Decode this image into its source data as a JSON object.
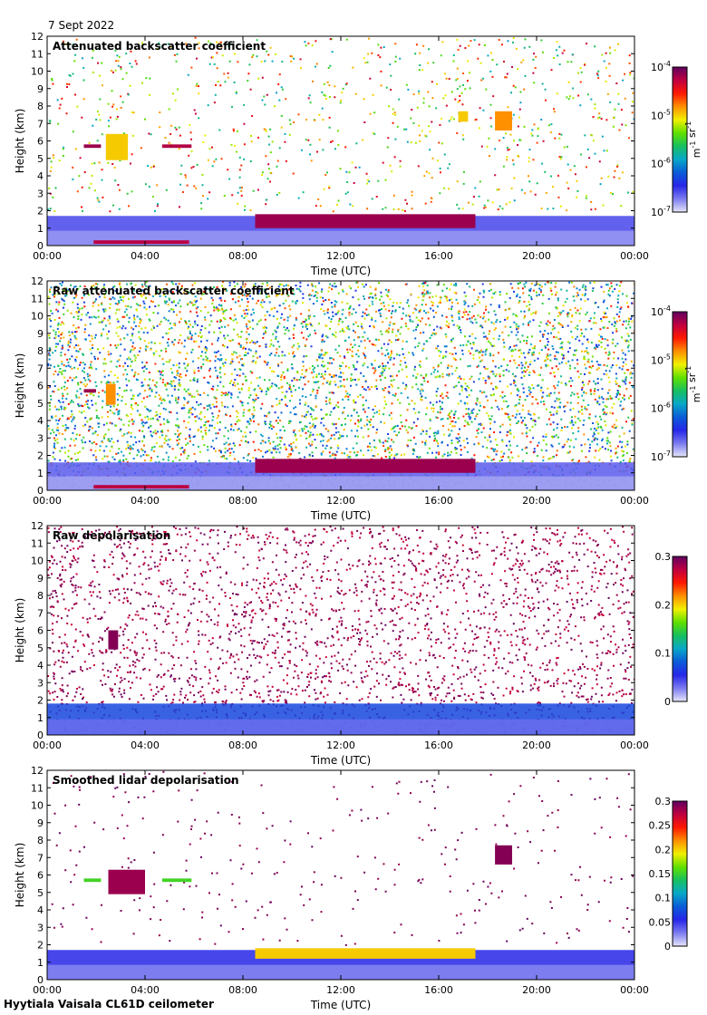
{
  "date": "7 Sept 2022",
  "footer": "Hyytiala Vaisala CL61D ceilometer",
  "colors": {
    "cmap": [
      "#ffffff",
      "#c8c8f4",
      "#7c7cf0",
      "#2626e8",
      "#0b5cd8",
      "#08a8c8",
      "#18c060",
      "#60e000",
      "#f0f000",
      "#ff9000",
      "#ff1800",
      "#c00040",
      "#600060"
    ],
    "low_signal": "#d8d8d8"
  },
  "chart_data": [
    {
      "type": "heatmap",
      "title": "Attenuated backscatter coefficient",
      "xlabel": "Time (UTC)",
      "ylabel": "Height (km)",
      "x_ticks": [
        "00:00",
        "04:00",
        "08:00",
        "12:00",
        "16:00",
        "20:00",
        "00:00"
      ],
      "xlim": [
        0,
        24
      ],
      "ylim": [
        0,
        12
      ],
      "y_ticks": [
        0,
        1,
        2,
        3,
        4,
        5,
        6,
        7,
        8,
        9,
        10,
        11,
        12
      ],
      "colorbar": {
        "scale": "log",
        "range": [
          1e-07,
          0.0001
        ],
        "ticks": [
          {
            "base": "10",
            "exp": "-7"
          },
          {
            "base": "10",
            "exp": "-6"
          },
          {
            "base": "10",
            "exp": "-5"
          },
          {
            "base": "10",
            "exp": "-4"
          }
        ],
        "unit": {
          "a": "m",
          "a_exp": "-1",
          "b": "sr",
          "b_exp": "-1"
        }
      },
      "features": [
        {
          "kind": "aerosol_layer",
          "time": [
            0,
            24
          ],
          "height": [
            0,
            1.7
          ],
          "level": 0.22
        },
        {
          "kind": "cloud_base",
          "time": [
            1.5,
            2.2
          ],
          "height": [
            5.6,
            5.8
          ],
          "level": 0.95
        },
        {
          "kind": "cloud_base",
          "time": [
            2.4,
            3.3
          ],
          "height": [
            4.9,
            6.4
          ],
          "level": 0.7
        },
        {
          "kind": "cloud_base",
          "time": [
            4.7,
            5.9
          ],
          "height": [
            5.6,
            5.8
          ],
          "level": 0.93
        },
        {
          "kind": "cloud_base",
          "time": [
            8.5,
            17.5
          ],
          "height": [
            1.0,
            1.8
          ],
          "level": 0.95
        },
        {
          "kind": "cloud_base",
          "time": [
            16.8,
            17.2
          ],
          "height": [
            7.1,
            7.7
          ],
          "level": 0.7
        },
        {
          "kind": "cloud_base",
          "time": [
            18.3,
            19.0
          ],
          "height": [
            6.6,
            7.7
          ],
          "level": 0.75
        },
        {
          "kind": "cloud_base",
          "time": [
            1.9,
            5.8
          ],
          "height": [
            0.1,
            0.3
          ],
          "level": 0.92
        }
      ],
      "noise": {
        "height": [
          2,
          12
        ],
        "level_min": 0.4,
        "level_max": 0.92,
        "density": 0.18
      }
    },
    {
      "type": "heatmap",
      "title": "Raw attenuated backscatter coefficient",
      "xlabel": "Time (UTC)",
      "ylabel": "Height (km)",
      "x_ticks": [
        "00:00",
        "04:00",
        "08:00",
        "12:00",
        "16:00",
        "20:00",
        "00:00"
      ],
      "xlim": [
        0,
        24
      ],
      "ylim": [
        0,
        12
      ],
      "y_ticks": [
        0,
        1,
        2,
        3,
        4,
        5,
        6,
        7,
        8,
        9,
        10,
        11,
        12
      ],
      "colorbar": {
        "scale": "log",
        "range": [
          1e-07,
          0.0001
        ],
        "ticks": [
          {
            "base": "10",
            "exp": "-7"
          },
          {
            "base": "10",
            "exp": "-6"
          },
          {
            "base": "10",
            "exp": "-5"
          },
          {
            "base": "10",
            "exp": "-4"
          }
        ],
        "unit": {
          "a": "m",
          "a_exp": "-1",
          "b": "sr",
          "b_exp": "-1"
        }
      },
      "features": [
        {
          "kind": "aerosol_layer",
          "time": [
            0,
            24
          ],
          "height": [
            0,
            1.6
          ],
          "level": 0.2
        },
        {
          "kind": "cloud_base",
          "time": [
            8.5,
            17.5
          ],
          "height": [
            1.0,
            1.8
          ],
          "level": 0.95
        },
        {
          "kind": "cloud_base",
          "time": [
            2.4,
            2.8
          ],
          "height": [
            4.9,
            6.1
          ],
          "level": 0.75
        },
        {
          "kind": "cloud_base",
          "time": [
            1.5,
            2.0
          ],
          "height": [
            5.6,
            5.8
          ],
          "level": 0.95
        },
        {
          "kind": "cloud_base",
          "time": [
            1.9,
            5.8
          ],
          "height": [
            0.1,
            0.3
          ],
          "level": 0.92
        }
      ],
      "noise": {
        "height": [
          0,
          12
        ],
        "level_min": 0.25,
        "level_max": 0.85,
        "density": 1.0
      }
    },
    {
      "type": "heatmap",
      "title": "Raw depolarisation",
      "xlabel": "Time (UTC)",
      "ylabel": "Height (km)",
      "x_ticks": [
        "00:00",
        "04:00",
        "08:00",
        "12:00",
        "16:00",
        "20:00",
        "00:00"
      ],
      "xlim": [
        0,
        24
      ],
      "ylim": [
        0,
        12
      ],
      "y_ticks": [
        0,
        1,
        2,
        3,
        4,
        5,
        6,
        7,
        8,
        9,
        10,
        11,
        12
      ],
      "colorbar": {
        "scale": "linear",
        "range": [
          0,
          0.3
        ],
        "ticks": [
          "0",
          "0.1",
          "0.2",
          "0.3"
        ]
      },
      "features": [
        {
          "kind": "aerosol_layer",
          "time": [
            0,
            24
          ],
          "height": [
            0,
            1.8
          ],
          "level": 0.3
        },
        {
          "kind": "cloud_base",
          "time": [
            2.5,
            2.9
          ],
          "height": [
            4.9,
            6.0
          ],
          "level": 0.97
        }
      ],
      "noise": {
        "height": [
          0,
          12
        ],
        "level_min": 0.9,
        "level_max": 1.0,
        "density": 0.55
      }
    },
    {
      "type": "heatmap",
      "title": "Smoothed lidar depolarisation",
      "xlabel": "Time (UTC)",
      "ylabel": "Height (km)",
      "x_ticks": [
        "00:00",
        "04:00",
        "08:00",
        "12:00",
        "16:00",
        "20:00",
        "00:00"
      ],
      "xlim": [
        0,
        24
      ],
      "ylim": [
        0,
        12
      ],
      "y_ticks": [
        0,
        1,
        2,
        3,
        4,
        5,
        6,
        7,
        8,
        9,
        10,
        11,
        12
      ],
      "colorbar": {
        "scale": "linear",
        "range": [
          0,
          0.3
        ],
        "ticks": [
          "0",
          "0.05",
          "0.1",
          "0.15",
          "0.2",
          "0.25",
          "0.3"
        ]
      },
      "features": [
        {
          "kind": "aerosol_layer",
          "time": [
            0,
            24
          ],
          "height": [
            0,
            1.7
          ],
          "level": 0.25
        },
        {
          "kind": "cloud_base",
          "time": [
            1.5,
            2.2
          ],
          "height": [
            5.6,
            5.8
          ],
          "level": 0.55
        },
        {
          "kind": "cloud_base",
          "time": [
            2.5,
            4.0
          ],
          "height": [
            4.9,
            6.3
          ],
          "level": 0.95
        },
        {
          "kind": "cloud_base",
          "time": [
            4.7,
            5.9
          ],
          "height": [
            5.6,
            5.8
          ],
          "level": 0.55
        },
        {
          "kind": "cloud_base",
          "time": [
            8.5,
            17.5
          ],
          "height": [
            1.2,
            1.8
          ],
          "level": 0.7
        },
        {
          "kind": "cloud_base",
          "time": [
            18.3,
            19.0
          ],
          "height": [
            6.6,
            7.7
          ],
          "level": 0.97
        }
      ],
      "noise": {
        "height": [
          2,
          12
        ],
        "level_min": 0.95,
        "level_max": 1.0,
        "density": 0.06
      }
    }
  ]
}
